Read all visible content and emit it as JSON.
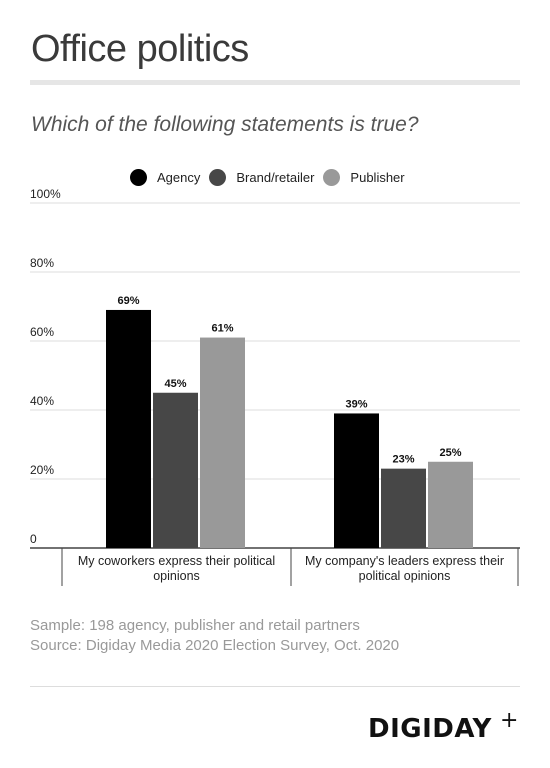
{
  "header": {
    "title": "Office politics",
    "subtitle": "Which of the following statements is true?"
  },
  "legend": [
    {
      "label": "Agency",
      "color": "#000000"
    },
    {
      "label": "Brand/retailer",
      "color": "#474747"
    },
    {
      "label": "Publisher",
      "color": "#999999"
    }
  ],
  "chart_data": {
    "type": "bar",
    "title": "Which of the following statements is true?",
    "categories": [
      "My coworkers express their political opinions",
      "My company's leaders express their political opinions"
    ],
    "category_lines": [
      [
        "My coworkers express their political",
        "opinions"
      ],
      [
        "My company's leaders express their",
        "political opinions"
      ]
    ],
    "series": [
      {
        "name": "Agency",
        "color": "#000000",
        "values": [
          69,
          39
        ],
        "labels": [
          "69%",
          "39%"
        ]
      },
      {
        "name": "Brand/retailer",
        "color": "#474747",
        "values": [
          45,
          23
        ],
        "labels": [
          "45%",
          "23%"
        ]
      },
      {
        "name": "Publisher",
        "color": "#999999",
        "values": [
          61,
          25
        ],
        "labels": [
          "61%",
          "25%"
        ]
      }
    ],
    "ylim": [
      0,
      100
    ],
    "yticks": [
      0,
      20,
      40,
      60,
      80,
      100
    ],
    "ytick_labels": [
      "0",
      "20%",
      "40%",
      "60%",
      "80%",
      "100%"
    ],
    "grid": true,
    "legend_position": "top"
  },
  "notes": {
    "sample": "Sample: 198 agency, publisher and retail partners",
    "source": "Source: Digiday Media 2020 Election Survey, Oct. 2020"
  },
  "brand": {
    "name": "DIGIDAY",
    "mark": "+"
  }
}
